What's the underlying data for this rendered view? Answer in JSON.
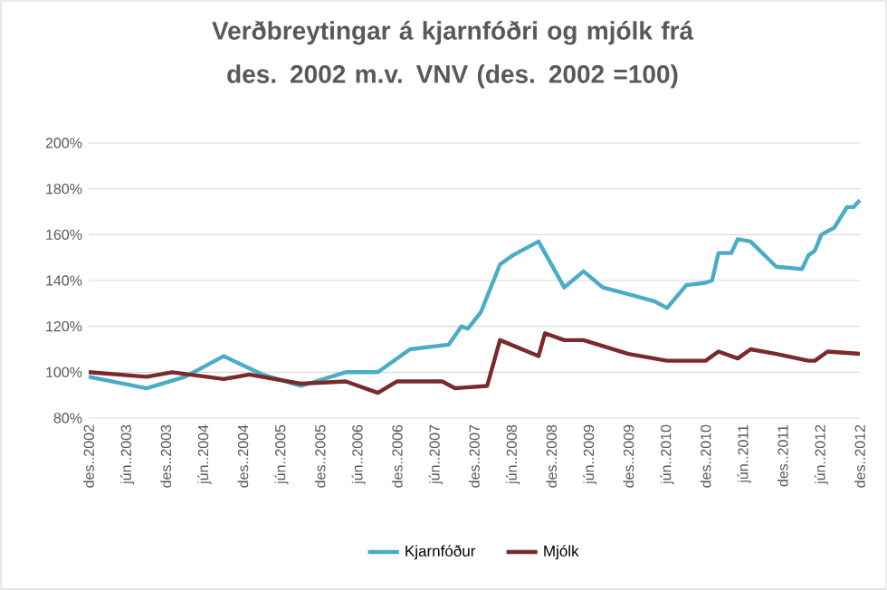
{
  "chart_data": {
    "type": "line",
    "title": "Verðbreytingar  á kjarnfóðri og mjólk frá des. 2002 m.v. VNV (des. 2002 =100)",
    "xlim": [
      "2002-12",
      "2012-12"
    ],
    "xticks": [
      {
        "value": "2002-12",
        "label": "des..2002"
      },
      {
        "value": "2003-06",
        "label": "jún..2003"
      },
      {
        "value": "2003-12",
        "label": "des..2003"
      },
      {
        "value": "2004-06",
        "label": "jún..2004"
      },
      {
        "value": "2004-12",
        "label": "des..2004"
      },
      {
        "value": "2005-06",
        "label": "jún..2005"
      },
      {
        "value": "2005-12",
        "label": "des..2005"
      },
      {
        "value": "2006-06",
        "label": "jún..2006"
      },
      {
        "value": "2006-12",
        "label": "des..2006"
      },
      {
        "value": "2007-06",
        "label": "jún..2007"
      },
      {
        "value": "2007-12",
        "label": "des..2007"
      },
      {
        "value": "2008-06",
        "label": "jún..2008"
      },
      {
        "value": "2008-12",
        "label": "des..2008"
      },
      {
        "value": "2009-06",
        "label": "jún..2009"
      },
      {
        "value": "2009-12",
        "label": "des..2009"
      },
      {
        "value": "2010-06",
        "label": "jún..2010"
      },
      {
        "value": "2010-12",
        "label": "des..2010"
      },
      {
        "value": "2011-06",
        "label": "jún..2011"
      },
      {
        "value": "2011-12",
        "label": "des..2011"
      },
      {
        "value": "2012-06",
        "label": "jún..2012"
      },
      {
        "value": "2012-12",
        "label": "des..2012"
      }
    ],
    "ylim": [
      80,
      200
    ],
    "yticks": [
      {
        "value": 80,
        "label": "80%"
      },
      {
        "value": 100,
        "label": "100%"
      },
      {
        "value": 120,
        "label": "120%"
      },
      {
        "value": 140,
        "label": "140%"
      },
      {
        "value": 160,
        "label": "160%"
      },
      {
        "value": 180,
        "label": "180%"
      },
      {
        "value": 200,
        "label": "200%"
      }
    ],
    "grid": "y",
    "legend": "bottom",
    "marker": "none",
    "line_style": "solid",
    "series": [
      {
        "name": "Kjarnfóður",
        "color": "#4bacc6",
        "x": [
          "2002-12",
          "2003-09",
          "2004-03",
          "2004-09",
          "2005-03",
          "2005-09",
          "2006-04",
          "2006-09",
          "2007-02",
          "2007-08",
          "2007-10",
          "2007-11",
          "2008-01",
          "2008-04",
          "2008-06",
          "2008-10",
          "2009-02",
          "2009-05",
          "2009-08",
          "2009-12",
          "2010-04",
          "2010-06",
          "2010-09",
          "2010-12",
          "2011-01",
          "2011-02",
          "2011-04",
          "2011-05",
          "2011-07",
          "2011-11",
          "2012-03",
          "2012-04",
          "2012-05",
          "2012-06",
          "2012-08",
          "2012-10",
          "2012-11",
          "2012-12"
        ],
        "values": [
          98,
          93,
          98,
          107,
          99,
          94,
          100,
          100,
          110,
          112,
          120,
          119,
          126,
          147,
          151,
          157,
          137,
          144,
          137,
          134,
          131,
          128,
          138,
          139,
          140,
          152,
          152,
          158,
          157,
          146,
          145,
          151,
          153,
          160,
          163,
          172,
          172,
          175
        ]
      },
      {
        "name": "Mjólk",
        "color": "#7a2a2a",
        "x": [
          "2002-12",
          "2003-09",
          "2004-01",
          "2004-09",
          "2005-01",
          "2005-09",
          "2006-04",
          "2006-09",
          "2006-12",
          "2007-07",
          "2007-09",
          "2008-02",
          "2008-04",
          "2008-10",
          "2008-11",
          "2009-02",
          "2009-05",
          "2009-12",
          "2010-06",
          "2010-12",
          "2011-02",
          "2011-05",
          "2011-07",
          "2011-11",
          "2012-04",
          "2012-05",
          "2012-07",
          "2012-12"
        ],
        "values": [
          100,
          98,
          100,
          97,
          99,
          95,
          96,
          91,
          96,
          96,
          93,
          94,
          114,
          107,
          117,
          114,
          114,
          108,
          105,
          105,
          109,
          106,
          110,
          108,
          105,
          105,
          109,
          108
        ]
      }
    ]
  }
}
